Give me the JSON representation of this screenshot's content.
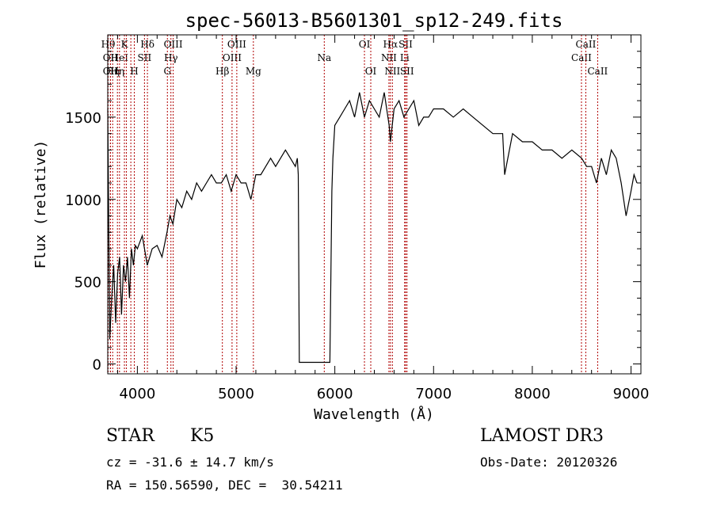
{
  "chart_data": {
    "type": "line",
    "title": "spec-56013-B5601301_sp12-249.fits",
    "xlabel": "Wavelength (Å)",
    "ylabel": "Flux (relative)",
    "xlim": [
      3700,
      9100
    ],
    "ylim": [
      -60,
      2000
    ],
    "xticks": [
      4000,
      5000,
      6000,
      7000,
      8000,
      9000
    ],
    "yticks": [
      0,
      500,
      1000,
      1500
    ],
    "series": [
      {
        "name": "flux",
        "x": [
          3700,
          3720,
          3740,
          3760,
          3780,
          3800,
          3820,
          3840,
          3860,
          3880,
          3900,
          3920,
          3940,
          3960,
          3980,
          4000,
          4050,
          4100,
          4150,
          4200,
          4250,
          4300,
          4330,
          4360,
          4400,
          4450,
          4500,
          4550,
          4600,
          4650,
          4700,
          4750,
          4800,
          4850,
          4900,
          4950,
          5000,
          5050,
          5100,
          5150,
          5200,
          5250,
          5300,
          5350,
          5400,
          5450,
          5500,
          5550,
          5600,
          5620,
          5630,
          5640,
          5660,
          5700,
          5800,
          5900,
          5950,
          5960,
          5970,
          5980,
          6000,
          6050,
          6100,
          6150,
          6200,
          6250,
          6300,
          6350,
          6400,
          6450,
          6500,
          6550,
          6563,
          6600,
          6650,
          6700,
          6750,
          6800,
          6850,
          6900,
          6950,
          7000,
          7100,
          7200,
          7300,
          7400,
          7500,
          7600,
          7700,
          7720,
          7800,
          7900,
          8000,
          8100,
          8200,
          8300,
          8400,
          8500,
          8550,
          8600,
          8650,
          8700,
          8750,
          8800,
          8850,
          8900,
          8950,
          9000,
          9030,
          9060
        ],
        "y": [
          1550,
          150,
          400,
          600,
          250,
          550,
          650,
          300,
          600,
          500,
          650,
          400,
          700,
          600,
          720,
          700,
          780,
          600,
          700,
          720,
          650,
          800,
          900,
          850,
          1000,
          950,
          1050,
          1000,
          1100,
          1050,
          1100,
          1150,
          1100,
          1100,
          1150,
          1050,
          1150,
          1100,
          1100,
          1000,
          1150,
          1150,
          1200,
          1250,
          1200,
          1250,
          1300,
          1250,
          1200,
          1250,
          1150,
          10,
          10,
          10,
          10,
          10,
          10,
          550,
          1050,
          1250,
          1450,
          1500,
          1550,
          1600,
          1500,
          1650,
          1500,
          1600,
          1550,
          1500,
          1650,
          1450,
          1350,
          1550,
          1600,
          1500,
          1550,
          1600,
          1450,
          1500,
          1500,
          1550,
          1550,
          1500,
          1550,
          1500,
          1450,
          1400,
          1400,
          1150,
          1400,
          1350,
          1350,
          1300,
          1300,
          1250,
          1300,
          1250,
          1200,
          1200,
          1100,
          1250,
          1150,
          1300,
          1250,
          1100,
          900,
          1050,
          1150,
          1100
        ]
      }
    ],
    "lines": [
      {
        "x": 3704,
        "label": "Hθ",
        "row": 1
      },
      {
        "x": 3727,
        "label": "OII",
        "row": 2
      },
      {
        "x": 3727,
        "label": "OII",
        "row": 3
      },
      {
        "x": 3750,
        "label": "Hη",
        "row": 3
      },
      {
        "x": 3798,
        "label": "Hη",
        "row": 3
      },
      {
        "x": 3819,
        "label": "HeI",
        "row": 2
      },
      {
        "x": 3869,
        "label": "K",
        "row": 1
      },
      {
        "x": 3889,
        "label": "",
        "row": 0
      },
      {
        "x": 3934,
        "label": "",
        "row": 0
      },
      {
        "x": 3969,
        "label": "H",
        "row": 3
      },
      {
        "x": 4072,
        "label": "SII",
        "row": 2
      },
      {
        "x": 4102,
        "label": "Hδ",
        "row": 1
      },
      {
        "x": 4304,
        "label": "G",
        "row": 3
      },
      {
        "x": 4340,
        "label": "Hγ",
        "row": 2
      },
      {
        "x": 4363,
        "label": "OIII",
        "row": 1
      },
      {
        "x": 4861,
        "label": "Hβ",
        "row": 3
      },
      {
        "x": 4959,
        "label": "OIII",
        "row": 2
      },
      {
        "x": 5007,
        "label": "OIII",
        "row": 1
      },
      {
        "x": 5175,
        "label": "Mg",
        "row": 3
      },
      {
        "x": 5893,
        "label": "Na",
        "row": 2
      },
      {
        "x": 6300,
        "label": "OI",
        "row": 1
      },
      {
        "x": 6364,
        "label": "OI",
        "row": 3
      },
      {
        "x": 6548,
        "label": "NII",
        "row": 2
      },
      {
        "x": 6563,
        "label": "Hα",
        "row": 1
      },
      {
        "x": 6583,
        "label": "NII",
        "row": 3
      },
      {
        "x": 6707,
        "label": "Li",
        "row": 2
      },
      {
        "x": 6717,
        "label": "SII",
        "row": 1
      },
      {
        "x": 6731,
        "label": "SII",
        "row": 3
      },
      {
        "x": 8498,
        "label": "CaII",
        "row": 2
      },
      {
        "x": 8542,
        "label": "CaII",
        "row": 1
      },
      {
        "x": 8662,
        "label": "CaII",
        "row": 3
      }
    ]
  },
  "info": {
    "class": "STAR",
    "subclass": "K5",
    "survey": "LAMOST DR3",
    "cz": "cz = -31.6 ± 14.7 km/s",
    "obsdate": "Obs-Date: 20120326",
    "radec": "RA = 150.56590, DEC =  30.54211"
  },
  "colors": {
    "line_marker": "#b00000",
    "spectrum": "#000000",
    "axes": "#000000"
  }
}
